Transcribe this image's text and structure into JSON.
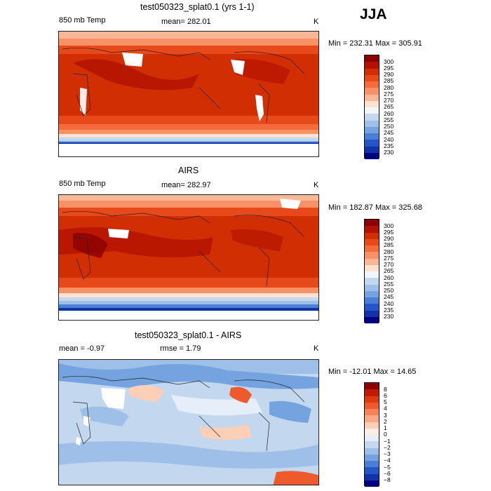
{
  "season": "JJA",
  "panels": [
    {
      "title": "test050323_splat0.1 (yrs 1-1)",
      "left_label": "850 mb Temp",
      "center_label": "mean= 282.01",
      "units": "K",
      "range_text": "Min = 232.31  Max = 305.91",
      "colorbar": {
        "ticks": [
          "300",
          "295",
          "290",
          "285",
          "280",
          "275",
          "270",
          "265",
          "260",
          "255",
          "250",
          "245",
          "240",
          "235",
          "230"
        ],
        "colors": [
          "#8b0000",
          "#b31200",
          "#d22e04",
          "#e8491b",
          "#f46b3c",
          "#f89166",
          "#fbb796",
          "#fde2cf",
          "#f2f6fb",
          "#c3d8ef",
          "#9ec0e8",
          "#74a3df",
          "#4a7fd6",
          "#2555c6",
          "#1034a8",
          "#000080"
        ]
      }
    },
    {
      "title": "AIRS",
      "left_label": "850 mb Temp",
      "center_label": "mean= 282.97",
      "units": "K",
      "range_text": "Min = 182.87  Max = 325.68",
      "colorbar": {
        "ticks": [
          "300",
          "295",
          "290",
          "285",
          "280",
          "275",
          "270",
          "265",
          "260",
          "255",
          "250",
          "245",
          "240",
          "235",
          "230"
        ],
        "colors": [
          "#8b0000",
          "#b31200",
          "#d22e04",
          "#e8491b",
          "#f46b3c",
          "#f89166",
          "#fbb796",
          "#fde2cf",
          "#f2f6fb",
          "#c3d8ef",
          "#9ec0e8",
          "#74a3df",
          "#4a7fd6",
          "#2555c6",
          "#1034a8",
          "#000080"
        ]
      }
    },
    {
      "title": "test050323_splat0.1 - AIRS",
      "left_label": "mean =   -0.97",
      "center_label": "rmse =    1.79",
      "units": "K",
      "range_text": "Min = -12.01  Max =   14.65",
      "colorbar": {
        "ticks": [
          "8",
          "6",
          "5",
          "4",
          "3",
          "2",
          "1",
          "0",
          "−1",
          "−2",
          "−3",
          "−4",
          "−5",
          "−6",
          "−8"
        ],
        "colors": [
          "#8b0000",
          "#c01a00",
          "#dc3a10",
          "#ee5a2c",
          "#f6835a",
          "#f9a985",
          "#fccfb6",
          "#fdeee4",
          "#e6eff9",
          "#c3d8ef",
          "#9ec0e8",
          "#74a3df",
          "#4a7fd6",
          "#2555c6",
          "#1034a8",
          "#000080"
        ]
      }
    }
  ]
}
